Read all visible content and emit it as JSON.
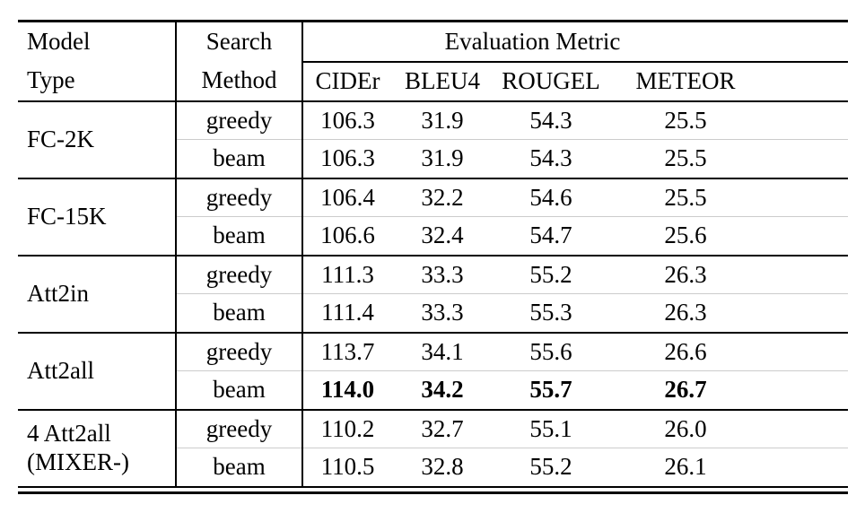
{
  "colors": {
    "background": "#ffffff",
    "text": "#000000",
    "rule": "#000000",
    "hairline": "#cccccc"
  },
  "table": {
    "header": {
      "model_line1": "Model",
      "model_line2": "Type",
      "search_line1": "Search",
      "search_line2": "Method",
      "metrics_group_label": "Evaluation Metric",
      "metric_columns": [
        "CIDEr",
        "BLEU4",
        "ROUGEL",
        "METEOR"
      ]
    },
    "groups": [
      {
        "model": "FC-2K",
        "model_line2": "",
        "rows": [
          {
            "search": "greedy",
            "values": [
              "106.3",
              "31.9",
              "54.3",
              "25.5"
            ],
            "bold": false
          },
          {
            "search": "beam",
            "values": [
              "106.3",
              "31.9",
              "54.3",
              "25.5"
            ],
            "bold": false
          }
        ]
      },
      {
        "model": "FC-15K",
        "model_line2": "",
        "rows": [
          {
            "search": "greedy",
            "values": [
              "106.4",
              "32.2",
              "54.6",
              "25.5"
            ],
            "bold": false
          },
          {
            "search": "beam",
            "values": [
              "106.6",
              "32.4",
              "54.7",
              "25.6"
            ],
            "bold": false
          }
        ]
      },
      {
        "model": "Att2in",
        "model_line2": "",
        "rows": [
          {
            "search": "greedy",
            "values": [
              "111.3",
              "33.3",
              "55.2",
              "26.3"
            ],
            "bold": false
          },
          {
            "search": "beam",
            "values": [
              "111.4",
              "33.3",
              "55.3",
              "26.3"
            ],
            "bold": false
          }
        ]
      },
      {
        "model": "Att2all",
        "model_line2": "",
        "rows": [
          {
            "search": "greedy",
            "values": [
              "113.7",
              "34.1",
              "55.6",
              "26.6"
            ],
            "bold": false
          },
          {
            "search": "beam",
            "values": [
              "114.0",
              "34.2",
              "55.7",
              "26.7"
            ],
            "bold": true
          }
        ]
      },
      {
        "model": "4 Att2all",
        "model_line2": "(MIXER-)",
        "rows": [
          {
            "search": "greedy",
            "values": [
              "110.2",
              "32.7",
              "55.1",
              "26.0"
            ],
            "bold": false
          },
          {
            "search": "beam",
            "values": [
              "110.5",
              "32.8",
              "55.2",
              "26.1"
            ],
            "bold": false
          }
        ]
      }
    ]
  }
}
